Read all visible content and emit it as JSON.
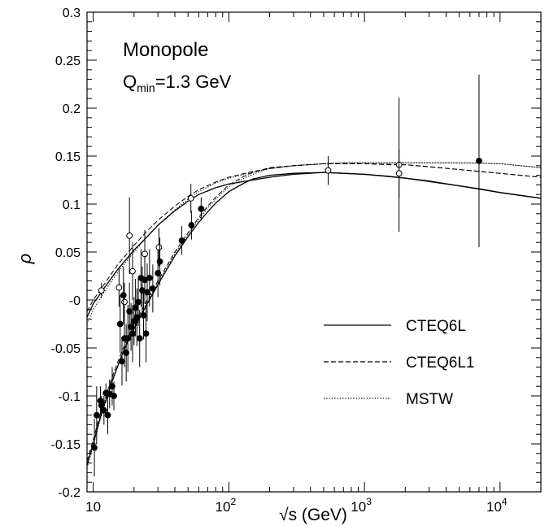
{
  "chart_data": {
    "type": "scatter",
    "xscale": "log",
    "xlim": [
      9,
      20000
    ],
    "ylim": [
      -0.2,
      0.3
    ],
    "grid": false,
    "xlabel": "√s  (GeV)",
    "ylabel": "ρ",
    "annotation": {
      "line1": "Monopole",
      "q_symbol": "Q",
      "q_sub": "min",
      "q_rest": "=1.3 GeV"
    },
    "yticks": [
      -0.2,
      -0.15,
      -0.1,
      -0.05,
      0,
      0.05,
      0.1,
      0.15,
      0.2,
      0.25,
      0.3
    ],
    "ytick_labels": [
      "-0.2",
      "-0.15",
      "-0.1",
      "-0.05",
      "-0",
      "0.05",
      "0.1",
      "0.15",
      "0.2",
      "0.25",
      "0.3"
    ],
    "xticks": [
      {
        "value": 10,
        "base": "10",
        "exp": ""
      },
      {
        "value": 100,
        "base": "10",
        "exp": "2"
      },
      {
        "value": 1000,
        "base": "10",
        "exp": "3"
      },
      {
        "value": 10000,
        "base": "10",
        "exp": "4"
      }
    ],
    "legend_position": "bottom-right",
    "series": [
      {
        "name": "CTEQ6L",
        "style": "solid",
        "branch": "upper",
        "x": [
          9,
          10,
          12,
          15,
          20,
          25,
          30,
          40,
          50,
          60,
          80,
          100,
          150,
          200,
          300,
          500,
          700,
          1000,
          1500,
          2000,
          3000,
          5000,
          7000,
          10000,
          20000
        ],
        "y": [
          -0.018,
          -0.004,
          0.012,
          0.031,
          0.052,
          0.066,
          0.078,
          0.093,
          0.103,
          0.11,
          0.117,
          0.121,
          0.125,
          0.128,
          0.131,
          0.133,
          0.132,
          0.131,
          0.129,
          0.127,
          0.124,
          0.119,
          0.116,
          0.112,
          0.106
        ]
      },
      {
        "name": "CTEQ6L1",
        "style": "dashed",
        "branch": "upper",
        "x": [
          9,
          10,
          12,
          15,
          20,
          25,
          30,
          40,
          50,
          60,
          80,
          100,
          150,
          200,
          300,
          500,
          700,
          1000,
          1500,
          2000,
          3000,
          5000,
          7000,
          10000,
          20000
        ],
        "y": [
          -0.012,
          0.0,
          0.016,
          0.036,
          0.057,
          0.072,
          0.083,
          0.098,
          0.108,
          0.115,
          0.123,
          0.128,
          0.134,
          0.137,
          0.14,
          0.142,
          0.142,
          0.142,
          0.141,
          0.141,
          0.139,
          0.136,
          0.134,
          0.132,
          0.128
        ]
      },
      {
        "name": "MSTW",
        "style": "dotted",
        "branch": "upper",
        "x": [
          9,
          10,
          12,
          15,
          20,
          25,
          30,
          40,
          50,
          60,
          80,
          100,
          150,
          200,
          300,
          500,
          700,
          1000,
          1500,
          2000,
          3000,
          5000,
          7000,
          10000,
          20000
        ],
        "y": [
          -0.025,
          -0.01,
          0.008,
          0.028,
          0.05,
          0.066,
          0.078,
          0.094,
          0.105,
          0.113,
          0.122,
          0.127,
          0.133,
          0.137,
          0.14,
          0.142,
          0.143,
          0.143,
          0.143,
          0.143,
          0.143,
          0.143,
          0.143,
          0.142,
          0.138
        ]
      },
      {
        "name": "CTEQ6L",
        "style": "solid",
        "branch": "lower",
        "x": [
          9,
          10,
          11,
          12,
          14,
          16,
          18,
          20,
          25,
          30,
          40,
          50,
          60,
          70,
          80,
          100,
          130,
          150,
          200,
          300,
          500,
          700,
          1000,
          2000,
          5000,
          10000,
          20000
        ],
        "y": [
          -0.172,
          -0.15,
          -0.128,
          -0.11,
          -0.082,
          -0.06,
          -0.043,
          -0.03,
          -0.004,
          0.016,
          0.046,
          0.066,
          0.081,
          0.092,
          0.101,
          0.113,
          0.122,
          0.126,
          0.13,
          0.132,
          0.133,
          0.132,
          0.131,
          0.127,
          0.119,
          0.112,
          0.106
        ]
      },
      {
        "name": "CTEQ6L1",
        "style": "dashed",
        "branch": "lower",
        "x": [
          9,
          10,
          11,
          12,
          14,
          16,
          18,
          20,
          25,
          30,
          40,
          50,
          60,
          70,
          80,
          100,
          130,
          150,
          200,
          300,
          500,
          700,
          1000,
          2000,
          5000,
          10000,
          20000
        ],
        "y": [
          -0.168,
          -0.146,
          -0.124,
          -0.106,
          -0.078,
          -0.056,
          -0.039,
          -0.026,
          0.0,
          0.02,
          0.05,
          0.07,
          0.086,
          0.098,
          0.107,
          0.12,
          0.129,
          0.133,
          0.138,
          0.14,
          0.142,
          0.142,
          0.142,
          0.141,
          0.136,
          0.132,
          0.128
        ]
      },
      {
        "name": "MSTW",
        "style": "dotted",
        "branch": "lower",
        "x": [
          9,
          10,
          11,
          12,
          14,
          16,
          18,
          20,
          25,
          30,
          40,
          50,
          60,
          70,
          80,
          100,
          130,
          150,
          200,
          300,
          500,
          700,
          1000,
          2000,
          5000,
          10000,
          20000
        ],
        "y": [
          -0.175,
          -0.152,
          -0.13,
          -0.112,
          -0.083,
          -0.06,
          -0.042,
          -0.029,
          -0.002,
          0.018,
          0.048,
          0.068,
          0.084,
          0.096,
          0.105,
          0.118,
          0.127,
          0.131,
          0.137,
          0.14,
          0.142,
          0.143,
          0.143,
          0.143,
          0.143,
          0.142,
          0.138
        ]
      }
    ],
    "legend": [
      {
        "label": "CTEQ6L",
        "style": "solid"
      },
      {
        "label": "CTEQ6L1",
        "style": "dashed"
      },
      {
        "label": "MSTW",
        "style": "dotted"
      }
    ],
    "open_points": [
      {
        "x": 11.5,
        "y": 0.01,
        "err": 0.008
      },
      {
        "x": 15.5,
        "y": 0.013,
        "err": 0.02
      },
      {
        "x": 17.0,
        "y": -0.002,
        "err": 0.02
      },
      {
        "x": 18.5,
        "y": 0.067,
        "err": 0.04
      },
      {
        "x": 19.5,
        "y": 0.03,
        "err": 0.03
      },
      {
        "x": 24.0,
        "y": 0.048,
        "err": 0.025
      },
      {
        "x": 30.5,
        "y": 0.055,
        "err": 0.02
      },
      {
        "x": 52.5,
        "y": 0.106,
        "err": 0.015
      },
      {
        "x": 540,
        "y": 0.135,
        "err": 0.015
      },
      {
        "x": 1800,
        "y": 0.141,
        "err": 0.07
      },
      {
        "x": 1800,
        "y": 0.132,
        "err": 0.025
      }
    ],
    "filled_points": [
      {
        "x": 10.2,
        "y": -0.154,
        "err": 0.03
      },
      {
        "x": 10.6,
        "y": -0.12,
        "err": 0.03
      },
      {
        "x": 11.3,
        "y": -0.105,
        "err": 0.015
      },
      {
        "x": 11.5,
        "y": -0.11,
        "err": 0.01
      },
      {
        "x": 12.0,
        "y": -0.115,
        "err": 0.015
      },
      {
        "x": 12.4,
        "y": -0.097,
        "err": 0.01
      },
      {
        "x": 12.8,
        "y": -0.12,
        "err": 0.02
      },
      {
        "x": 13.2,
        "y": -0.098,
        "err": 0.015
      },
      {
        "x": 13.8,
        "y": -0.09,
        "err": 0.02
      },
      {
        "x": 14.2,
        "y": -0.1,
        "err": 0.015
      },
      {
        "x": 15.8,
        "y": -0.025,
        "err": 0.03
      },
      {
        "x": 16.3,
        "y": -0.064,
        "err": 0.025
      },
      {
        "x": 16.7,
        "y": 0.005,
        "err": 0.03
      },
      {
        "x": 17.0,
        "y": -0.04,
        "err": 0.03
      },
      {
        "x": 17.5,
        "y": -0.055,
        "err": 0.03
      },
      {
        "x": 18.0,
        "y": -0.04,
        "err": 0.035
      },
      {
        "x": 18.5,
        "y": -0.012,
        "err": 0.03
      },
      {
        "x": 19.0,
        "y": -0.028,
        "err": 0.025
      },
      {
        "x": 19.5,
        "y": -0.035,
        "err": 0.03
      },
      {
        "x": 20.0,
        "y": -0.022,
        "err": 0.025
      },
      {
        "x": 20.5,
        "y": -0.008,
        "err": 0.03
      },
      {
        "x": 21.0,
        "y": -0.018,
        "err": 0.03
      },
      {
        "x": 21.5,
        "y": -0.002,
        "err": 0.025
      },
      {
        "x": 22.0,
        "y": -0.04,
        "err": 0.03
      },
      {
        "x": 22.5,
        "y": 0.023,
        "err": 0.03
      },
      {
        "x": 23.0,
        "y": 0.01,
        "err": 0.025
      },
      {
        "x": 23.5,
        "y": -0.016,
        "err": 0.025
      },
      {
        "x": 24.0,
        "y": 0.021,
        "err": 0.025
      },
      {
        "x": 24.5,
        "y": -0.035,
        "err": 0.03
      },
      {
        "x": 25.0,
        "y": 0.008,
        "err": 0.03
      },
      {
        "x": 26.0,
        "y": 0.023,
        "err": 0.03
      },
      {
        "x": 27.5,
        "y": 0.012,
        "err": 0.025
      },
      {
        "x": 30.0,
        "y": 0.028,
        "err": 0.025
      },
      {
        "x": 31.0,
        "y": 0.04,
        "err": 0.025
      },
      {
        "x": 45.0,
        "y": 0.062,
        "err": 0.015
      },
      {
        "x": 53.0,
        "y": 0.078,
        "err": 0.015
      },
      {
        "x": 62.5,
        "y": 0.095,
        "err": 0.012
      },
      {
        "x": 7000,
        "y": 0.145,
        "err": 0.09
      }
    ]
  }
}
